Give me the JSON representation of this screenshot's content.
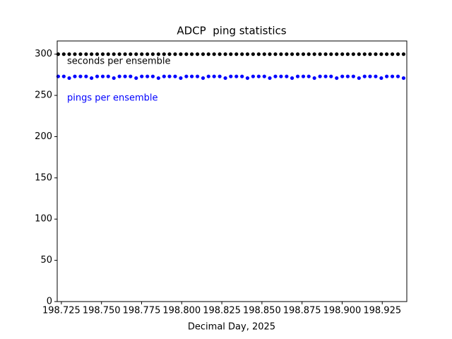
{
  "chart_data": {
    "type": "scatter",
    "title": "ADCP  ping statistics",
    "x_label": "Decimal Day, 2025",
    "x": [
      198.723,
      198.7265,
      198.7299,
      198.7334,
      198.7369,
      198.7404,
      198.7438,
      198.7473,
      198.7508,
      198.7542,
      198.7577,
      198.7612,
      198.7647,
      198.7681,
      198.7716,
      198.7751,
      198.7786,
      198.782,
      198.7855,
      198.789,
      198.7924,
      198.7959,
      198.7994,
      198.8029,
      198.8063,
      198.8098,
      198.8133,
      198.8167,
      198.8202,
      198.8237,
      198.8272,
      198.8306,
      198.8341,
      198.8376,
      198.841,
      198.8445,
      198.848,
      198.8515,
      198.8549,
      198.8584,
      198.8619,
      198.8654,
      198.8688,
      198.8723,
      198.8758,
      198.8792,
      198.8827,
      198.8862,
      198.8897,
      198.8931,
      198.8966,
      198.9001,
      198.9035,
      198.907,
      198.9105,
      198.914,
      198.9174,
      198.9209,
      198.9244,
      198.9278,
      198.9313,
      198.9348,
      198.9383
    ],
    "series": [
      {
        "name": "seconds per ensemble",
        "color": "#000000",
        "values": [
          300,
          300,
          300,
          300,
          300,
          300,
          300,
          300,
          300,
          300,
          300,
          300,
          300,
          300,
          300,
          300,
          300,
          300,
          300,
          300,
          300,
          300,
          300,
          300,
          300,
          300,
          300,
          300,
          300,
          300,
          300,
          300,
          300,
          300,
          300,
          300,
          300,
          300,
          300,
          300,
          300,
          300,
          300,
          300,
          300,
          300,
          300,
          300,
          300,
          300,
          300,
          300,
          300,
          300,
          300,
          300,
          300,
          300,
          300,
          300,
          300,
          300,
          300
        ]
      },
      {
        "name": "pings per ensemble",
        "color": "#0000ff",
        "values": [
          273,
          273,
          271,
          273,
          273,
          273,
          271,
          273,
          273,
          273,
          271,
          273,
          273,
          273,
          271,
          273,
          273,
          273,
          271,
          273,
          273,
          273,
          271,
          273,
          273,
          273,
          271,
          273,
          273,
          273,
          271,
          273,
          273,
          273,
          271,
          273,
          273,
          273,
          271,
          273,
          273,
          273,
          271,
          273,
          273,
          273,
          271,
          273,
          273,
          273,
          271,
          273,
          273,
          273,
          271,
          273,
          273,
          273,
          271,
          273,
          273,
          273,
          271
        ]
      }
    ],
    "xlim": [
      198.7224,
      198.9403
    ],
    "ylim": [
      0,
      316
    ],
    "xticks": [
      198.725,
      {
        "value": 198.75,
        "label": "198.750"
      },
      198.775,
      {
        "value": 198.8,
        "label": "198.800"
      },
      198.825,
      {
        "value": 198.85,
        "label": "198.850"
      },
      198.875,
      {
        "value": 198.9,
        "label": "198.900"
      },
      198.925
    ],
    "yticks": [
      0,
      50,
      100,
      150,
      200,
      250,
      300
    ]
  }
}
